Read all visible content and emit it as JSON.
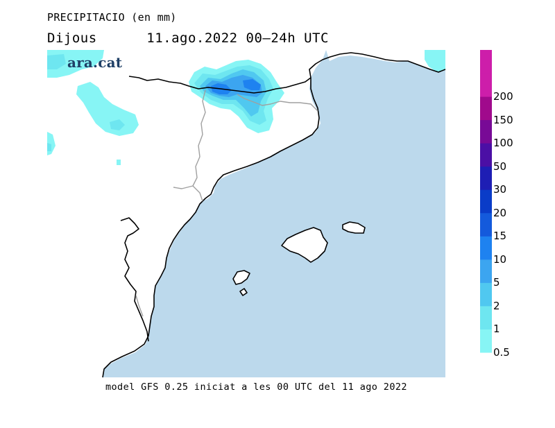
{
  "header": {
    "title": "PRECIPITACIO (en mm)",
    "day": "Dijous",
    "period": "11.ago.2022 00–24h UTC"
  },
  "logo": {
    "text": "ara.cat"
  },
  "footer": {
    "note": "model GFS 0.25 iniciat a les 00 UTC del 11 ago 2022"
  },
  "legend": {
    "labels": [
      "0.5",
      "1",
      "2",
      "5",
      "10",
      "15",
      "20",
      "30",
      "50",
      "100",
      "150",
      "200"
    ],
    "colors": [
      "#87f5f5",
      "#6ee6f0",
      "#50c8f0",
      "#3ca5f0",
      "#1e82f0",
      "#145adc",
      "#0a3cc8",
      "#1e1eb4",
      "#4b0fa5",
      "#780a96",
      "#a00a8c",
      "#cd1eaa"
    ]
  },
  "map_colors": {
    "sea": "#bcd9ec",
    "land": "#ffffff",
    "coast": "#000000",
    "borders": "#a0a0a0"
  }
}
